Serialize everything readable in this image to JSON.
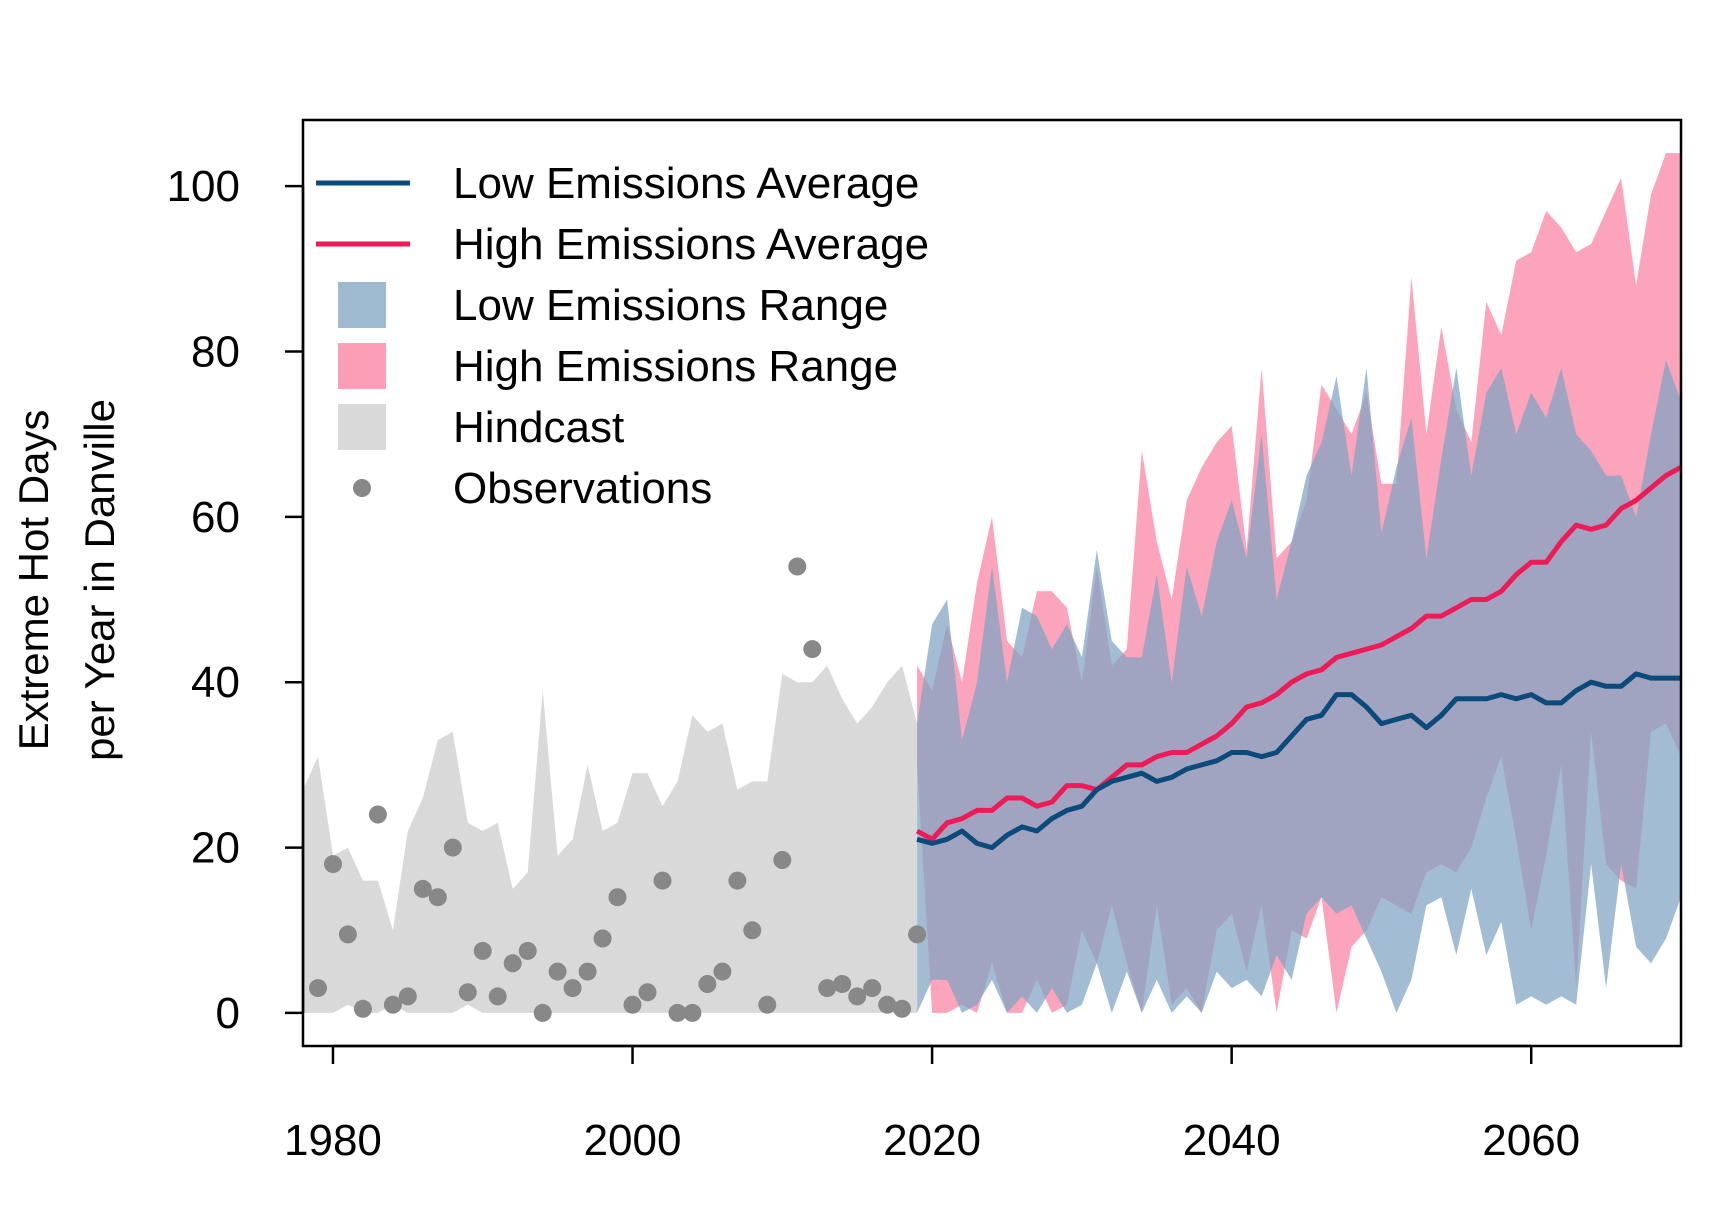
{
  "colors": {
    "low_line": "#0b4a7a",
    "high_line": "#ee1b56",
    "low_range": "#7ea3c2",
    "high_range": "#fb7d9e",
    "hindcast": "#d9d9d9",
    "observations": "#888888"
  },
  "chart_data": {
    "type": "line",
    "title": "",
    "xlabel": "",
    "ylabel": [
      "Extreme Hot Days",
      "per Year in Danville"
    ],
    "xlim": [
      1978,
      2070
    ],
    "ylim": [
      -4,
      108
    ],
    "x_ticks": [
      1980,
      2000,
      2020,
      2040,
      2060
    ],
    "y_ticks": [
      0,
      20,
      40,
      60,
      80,
      100
    ],
    "grid": false,
    "legend_position": "top-left",
    "legend": [
      {
        "label": "Low Emissions Average",
        "kind": "line",
        "color_key": "low_line"
      },
      {
        "label": "High Emissions Average",
        "kind": "line",
        "color_key": "high_line"
      },
      {
        "label": "Low Emissions Range",
        "kind": "box",
        "color_key": "low_range"
      },
      {
        "label": "High Emissions Range",
        "kind": "box",
        "color_key": "high_range"
      },
      {
        "label": "Hindcast",
        "kind": "box",
        "color_key": "hindcast"
      },
      {
        "label": "Observations",
        "kind": "point",
        "color_key": "observations"
      }
    ],
    "hindcast": {
      "x": [
        1978,
        1979,
        1980,
        1981,
        1982,
        1983,
        1984,
        1985,
        1986,
        1987,
        1988,
        1989,
        1990,
        1991,
        1992,
        1993,
        1994,
        1995,
        1996,
        1997,
        1998,
        1999,
        2000,
        2001,
        2002,
        2003,
        2004,
        2005,
        2006,
        2007,
        2008,
        2009,
        2010,
        2011,
        2012,
        2013,
        2014,
        2015,
        2016,
        2017,
        2018,
        2019
      ],
      "upper": [
        27,
        31,
        19,
        20,
        16,
        16,
        10,
        22,
        26,
        33,
        34,
        23,
        22,
        23,
        15,
        17,
        39,
        19,
        21,
        30,
        22,
        23,
        29,
        29,
        25,
        28,
        36,
        34,
        35,
        27,
        28,
        28,
        41,
        40,
        40,
        42,
        38,
        35,
        37,
        40,
        42,
        35
      ],
      "lower": [
        0,
        0,
        0,
        1,
        0,
        0,
        1,
        0,
        0,
        0,
        0,
        1,
        0,
        0,
        0,
        0,
        0,
        0,
        0,
        0,
        0,
        0,
        0,
        0,
        0,
        0,
        0,
        0,
        0,
        0,
        0,
        0,
        0,
        0,
        0,
        0,
        0,
        0,
        0,
        0,
        0,
        0
      ]
    },
    "observations": {
      "x": [
        1979,
        1980,
        1981,
        1982,
        1983,
        1984,
        1985,
        1986,
        1987,
        1988,
        1989,
        1990,
        1991,
        1992,
        1993,
        1994,
        1995,
        1996,
        1997,
        1998,
        1999,
        2000,
        2001,
        2002,
        2003,
        2004,
        2005,
        2006,
        2007,
        2008,
        2009,
        2010,
        2011,
        2012,
        2013,
        2014,
        2015,
        2016,
        2017,
        2018,
        2019
      ],
      "y": [
        3,
        18,
        9.5,
        0.5,
        24,
        1,
        2,
        15,
        14,
        20,
        2.5,
        7.5,
        2,
        6,
        7.5,
        0,
        5,
        3,
        5,
        9,
        14,
        1,
        2.5,
        16,
        0,
        0,
        3.5,
        5,
        16,
        10,
        1,
        18.5,
        54,
        44,
        3,
        3.5,
        2,
        3,
        1,
        0.5,
        9.5
      ]
    },
    "series": [
      {
        "name": "Low Emissions Average",
        "x": [
          2019,
          2020,
          2021,
          2022,
          2023,
          2024,
          2025,
          2026,
          2027,
          2028,
          2029,
          2030,
          2031,
          2032,
          2033,
          2034,
          2035,
          2036,
          2037,
          2038,
          2039,
          2040,
          2041,
          2042,
          2043,
          2044,
          2045,
          2046,
          2047,
          2048,
          2049,
          2050,
          2051,
          2052,
          2053,
          2054,
          2055,
          2056,
          2057,
          2058,
          2059,
          2060,
          2061,
          2062,
          2063,
          2064,
          2065,
          2066,
          2067,
          2068,
          2069,
          2070
        ],
        "y": [
          21,
          20.5,
          21,
          22,
          20.5,
          20,
          21.5,
          22.5,
          22,
          23.5,
          24.5,
          25,
          27,
          28,
          28.5,
          29,
          28,
          28.5,
          29.5,
          30,
          30.5,
          31.5,
          31.5,
          31,
          31.5,
          33.5,
          35.5,
          36,
          38.5,
          38.5,
          37,
          35,
          35.5,
          36,
          34.5,
          36,
          38,
          38,
          38,
          38.5,
          38,
          38.5,
          37.5,
          37.5,
          39,
          40,
          39.5,
          39.5,
          41,
          40.5,
          40.5,
          40.5
        ],
        "range_upper": [
          35,
          47,
          50,
          33,
          40,
          54,
          40,
          49,
          48,
          44,
          47,
          43,
          56,
          45,
          43,
          43,
          53,
          40,
          54,
          48,
          57,
          62,
          55,
          70,
          50,
          57,
          65,
          69,
          77,
          65,
          78,
          58,
          66,
          72,
          55,
          67,
          78,
          65,
          75,
          78,
          70,
          75,
          72,
          78,
          70,
          68,
          65,
          65,
          60,
          70,
          79,
          74
        ],
        "range_lower": [
          0,
          4,
          4,
          0,
          1,
          4,
          0,
          2,
          0,
          3,
          0,
          1,
          6,
          0,
          5,
          0,
          4,
          0,
          2,
          0,
          5,
          3,
          4,
          2,
          7,
          4,
          12,
          14,
          12,
          13,
          9,
          5,
          0,
          4,
          13,
          14,
          7,
          15,
          7,
          11,
          1,
          2,
          1,
          2,
          1,
          18,
          3,
          18,
          8,
          6,
          9,
          14
        ]
      },
      {
        "name": "High Emissions Average",
        "x": [
          2019,
          2020,
          2021,
          2022,
          2023,
          2024,
          2025,
          2026,
          2027,
          2028,
          2029,
          2030,
          2031,
          2032,
          2033,
          2034,
          2035,
          2036,
          2037,
          2038,
          2039,
          2040,
          2041,
          2042,
          2043,
          2044,
          2045,
          2046,
          2047,
          2048,
          2049,
          2050,
          2051,
          2052,
          2053,
          2054,
          2055,
          2056,
          2057,
          2058,
          2059,
          2060,
          2061,
          2062,
          2063,
          2064,
          2065,
          2066,
          2067,
          2068,
          2069,
          2070
        ],
        "y": [
          22,
          21,
          23,
          23.5,
          24.5,
          24.5,
          26,
          26,
          25,
          25.5,
          27.5,
          27.5,
          27,
          28.5,
          30,
          30,
          31,
          31.5,
          31.5,
          32.5,
          33.5,
          35,
          37,
          37.5,
          38.5,
          40,
          41,
          41.5,
          43,
          43.5,
          44,
          44.5,
          45.5,
          46.5,
          48,
          48,
          49,
          50,
          50,
          51,
          53,
          54.5,
          54.5,
          57,
          59,
          58.5,
          59,
          61,
          62,
          63.5,
          65,
          66
        ],
        "range_upper": [
          42,
          39,
          47,
          40,
          52,
          60,
          45,
          43,
          51,
          51,
          49,
          40,
          54,
          42,
          44,
          68,
          57,
          50,
          62,
          66,
          69,
          71,
          56,
          78,
          55,
          57,
          62,
          76,
          73,
          70,
          75,
          64,
          64,
          89,
          70,
          83,
          73,
          69,
          86,
          82,
          91,
          92,
          97,
          95,
          92,
          93,
          97,
          101,
          88,
          99,
          104,
          104
        ],
        "range_lower": [
          30,
          0,
          0,
          1,
          0,
          6,
          0,
          0,
          4,
          0,
          1,
          10,
          6,
          13,
          6,
          0,
          13,
          1,
          3,
          0,
          10,
          12,
          5,
          13,
          0,
          10,
          9,
          14,
          0,
          8,
          10,
          14,
          13,
          12,
          17,
          18,
          17,
          20,
          26,
          31,
          21,
          10,
          19,
          30,
          3,
          34,
          18,
          16,
          15,
          34,
          35,
          31
        ]
      }
    ]
  }
}
